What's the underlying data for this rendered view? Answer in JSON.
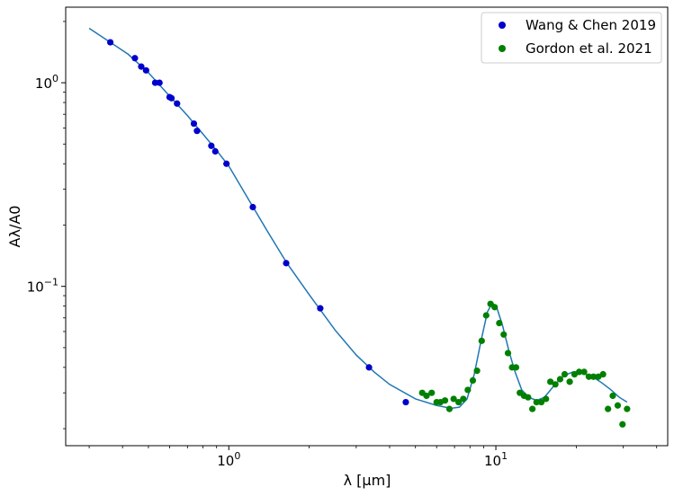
{
  "chart_data": {
    "type": "scatter",
    "xscale": "log",
    "yscale": "log",
    "xlabel": "λ [μm]",
    "ylabel": "Aλ/A0",
    "xlim": [
      0.245,
      44
    ],
    "ylim": [
      0.0165,
      2.35
    ],
    "xticks": [
      {
        "value": 1,
        "base": "10",
        "exp": "0"
      },
      {
        "value": 10,
        "base": "10",
        "exp": "1"
      }
    ],
    "yticks": [
      {
        "value": 0.1,
        "base": "10",
        "exp": "−1"
      },
      {
        "value": 1,
        "base": "10",
        "exp": "0"
      }
    ],
    "grid": false,
    "legend_position": "top-right",
    "series": [
      {
        "name": "Wang & Chen 2019",
        "kind": "points",
        "color": "#0000cc",
        "points": [
          [
            0.36,
            1.58
          ],
          [
            0.445,
            1.32
          ],
          [
            0.47,
            1.2
          ],
          [
            0.49,
            1.15
          ],
          [
            0.53,
            1.0
          ],
          [
            0.55,
            1.0
          ],
          [
            0.6,
            0.85
          ],
          [
            0.61,
            0.84
          ],
          [
            0.64,
            0.79
          ],
          [
            0.74,
            0.63
          ],
          [
            0.76,
            0.58
          ],
          [
            0.86,
            0.49
          ],
          [
            0.89,
            0.46
          ],
          [
            0.98,
            0.4
          ],
          [
            1.23,
            0.245
          ],
          [
            1.64,
            0.13
          ],
          [
            2.2,
            0.078
          ],
          [
            3.35,
            0.04
          ],
          [
            4.6,
            0.027
          ]
        ]
      },
      {
        "name": "Gordon et al. 2021",
        "kind": "points",
        "color": "#008000",
        "points": [
          [
            5.3,
            0.03
          ],
          [
            5.5,
            0.029
          ],
          [
            5.75,
            0.03
          ],
          [
            6.0,
            0.027
          ],
          [
            6.2,
            0.027
          ],
          [
            6.45,
            0.0275
          ],
          [
            6.7,
            0.025
          ],
          [
            6.95,
            0.028
          ],
          [
            7.25,
            0.027
          ],
          [
            7.55,
            0.028
          ],
          [
            7.85,
            0.031
          ],
          [
            8.2,
            0.0345
          ],
          [
            8.5,
            0.0385
          ],
          [
            8.85,
            0.054
          ],
          [
            9.2,
            0.072
          ],
          [
            9.55,
            0.082
          ],
          [
            9.9,
            0.079
          ],
          [
            10.3,
            0.066
          ],
          [
            10.7,
            0.058
          ],
          [
            11.1,
            0.047
          ],
          [
            11.5,
            0.04
          ],
          [
            11.9,
            0.04
          ],
          [
            12.3,
            0.03
          ],
          [
            12.75,
            0.029
          ],
          [
            13.2,
            0.0285
          ],
          [
            13.7,
            0.025
          ],
          [
            14.2,
            0.027
          ],
          [
            14.8,
            0.027
          ],
          [
            15.4,
            0.028
          ],
          [
            16.0,
            0.034
          ],
          [
            16.7,
            0.033
          ],
          [
            17.4,
            0.035
          ],
          [
            18.1,
            0.037
          ],
          [
            18.9,
            0.034
          ],
          [
            19.7,
            0.037
          ],
          [
            20.5,
            0.038
          ],
          [
            21.4,
            0.038
          ],
          [
            22.3,
            0.036
          ],
          [
            23.2,
            0.036
          ],
          [
            24.2,
            0.036
          ],
          [
            25.2,
            0.037
          ],
          [
            26.3,
            0.025
          ],
          [
            27.4,
            0.029
          ],
          [
            28.6,
            0.026
          ],
          [
            29.8,
            0.021
          ],
          [
            31.0,
            0.025
          ]
        ]
      },
      {
        "kind": "line",
        "color": "#1f77b4",
        "points": [
          [
            0.3,
            1.85
          ],
          [
            0.36,
            1.58
          ],
          [
            0.42,
            1.38
          ],
          [
            0.5,
            1.12
          ],
          [
            0.6,
            0.86
          ],
          [
            0.7,
            0.69
          ],
          [
            0.8,
            0.56
          ],
          [
            0.9,
            0.465
          ],
          [
            1.0,
            0.39
          ],
          [
            1.2,
            0.26
          ],
          [
            1.4,
            0.185
          ],
          [
            1.65,
            0.13
          ],
          [
            2.0,
            0.091
          ],
          [
            2.5,
            0.061
          ],
          [
            3.0,
            0.046
          ],
          [
            3.5,
            0.038
          ],
          [
            4.0,
            0.033
          ],
          [
            5.0,
            0.028
          ],
          [
            6.0,
            0.026
          ],
          [
            6.8,
            0.0252
          ],
          [
            7.3,
            0.0255
          ],
          [
            7.8,
            0.028
          ],
          [
            8.3,
            0.037
          ],
          [
            8.8,
            0.054
          ],
          [
            9.3,
            0.075
          ],
          [
            9.7,
            0.083
          ],
          [
            10.1,
            0.078
          ],
          [
            10.6,
            0.064
          ],
          [
            11.2,
            0.048
          ],
          [
            11.8,
            0.038
          ],
          [
            12.5,
            0.031
          ],
          [
            13.3,
            0.0285
          ],
          [
            14.2,
            0.0275
          ],
          [
            15.2,
            0.0285
          ],
          [
            16.5,
            0.0325
          ],
          [
            18.0,
            0.0365
          ],
          [
            19.5,
            0.038
          ],
          [
            21.0,
            0.0375
          ],
          [
            23.0,
            0.036
          ],
          [
            25.0,
            0.0335
          ],
          [
            27.0,
            0.031
          ],
          [
            29.0,
            0.0285
          ],
          [
            31.0,
            0.027
          ]
        ]
      }
    ]
  }
}
